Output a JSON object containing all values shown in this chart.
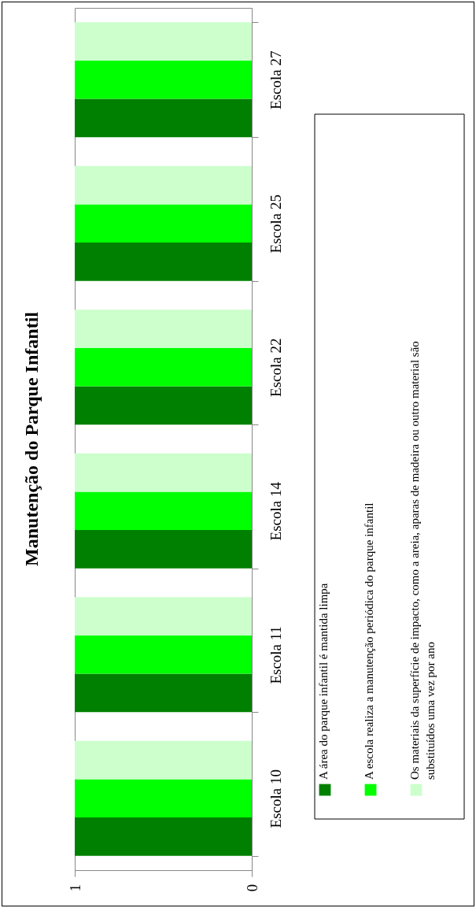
{
  "chart_data": {
    "type": "bar",
    "orientation": "horizontal",
    "title": "Manutenção do Parque Infantil",
    "categories": [
      "Escola 27",
      "Escola 25",
      "Escola 22",
      "Escola 14",
      "Escola 11",
      "Escola 10"
    ],
    "series": [
      {
        "name": "A área do parque infantil é mantida limpa",
        "color": "#008000",
        "values": [
          1,
          1,
          1,
          1,
          1,
          1
        ]
      },
      {
        "name": "A escola realiza a manutenção periódica do parque infantil",
        "color": "#00ff00",
        "values": [
          1,
          1,
          1,
          1,
          1,
          1
        ]
      },
      {
        "name": "Os materiais da superfície de impacto, como a areia, aparas de madeira ou outro material são substituídos uma vez por ano",
        "color": "#ccffcc",
        "values": [
          1,
          1,
          1,
          1,
          1,
          1
        ]
      }
    ],
    "xlim": [
      1,
      0
    ],
    "xticks": [
      0,
      1
    ],
    "legend": "right"
  }
}
